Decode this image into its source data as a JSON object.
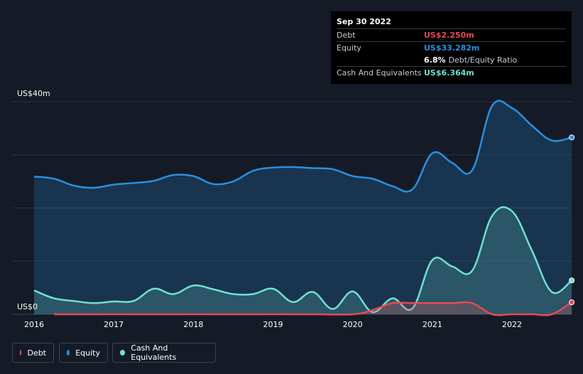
{
  "tooltip": {
    "date": "Sep 30 2022",
    "debt_label": "Debt",
    "debt_value": "US$2.250m",
    "equity_label": "Equity",
    "equity_value": "US$33.282m",
    "ratio_value": "6.8%",
    "ratio_label": "Debt/Equity Ratio",
    "cash_label": "Cash And Equivalents",
    "cash_value": "US$6.364m"
  },
  "legend": {
    "debt": "Debt",
    "equity": "Equity",
    "cash": "Cash And Equivalents"
  },
  "colors": {
    "debt": "#e64a55",
    "equity": "#2b8fe0",
    "cash": "#70e0cf",
    "background": "#151b26"
  },
  "chart_data": {
    "type": "area",
    "ylabel_top": "US$40m",
    "ylabel_bottom": "US$0",
    "ylim": [
      0,
      40
    ],
    "grid": true,
    "legend_position": "bottom-left",
    "x_ticks": [
      "2016",
      "2017",
      "2018",
      "2019",
      "2020",
      "2021",
      "2022"
    ],
    "series": [
      {
        "name": "Equity",
        "points": [
          [
            2016.0,
            25.9
          ],
          [
            2016.25,
            25.5
          ],
          [
            2016.5,
            24.2
          ],
          [
            2016.75,
            23.8
          ],
          [
            2017.0,
            24.4
          ],
          [
            2017.25,
            24.7
          ],
          [
            2017.5,
            25.1
          ],
          [
            2017.75,
            26.2
          ],
          [
            2018.0,
            26.0
          ],
          [
            2018.25,
            24.5
          ],
          [
            2018.5,
            25.0
          ],
          [
            2018.75,
            27.0
          ],
          [
            2019.0,
            27.6
          ],
          [
            2019.25,
            27.7
          ],
          [
            2019.5,
            27.5
          ],
          [
            2019.75,
            27.3
          ],
          [
            2020.0,
            26.0
          ],
          [
            2020.25,
            25.5
          ],
          [
            2020.5,
            24.1
          ],
          [
            2020.75,
            23.5
          ],
          [
            2021.0,
            30.3
          ],
          [
            2021.25,
            28.5
          ],
          [
            2021.5,
            27.1
          ],
          [
            2021.75,
            39.2
          ],
          [
            2022.0,
            38.8
          ],
          [
            2022.25,
            35.5
          ],
          [
            2022.5,
            32.7
          ],
          [
            2022.75,
            33.282
          ]
        ]
      },
      {
        "name": "Cash And Equivalents",
        "points": [
          [
            2016.0,
            4.5
          ],
          [
            2016.25,
            3.0
          ],
          [
            2016.5,
            2.5
          ],
          [
            2016.75,
            2.1
          ],
          [
            2017.0,
            2.4
          ],
          [
            2017.25,
            2.5
          ],
          [
            2017.5,
            4.8
          ],
          [
            2017.75,
            3.8
          ],
          [
            2018.0,
            5.4
          ],
          [
            2018.25,
            4.7
          ],
          [
            2018.5,
            3.8
          ],
          [
            2018.75,
            3.8
          ],
          [
            2019.0,
            4.8
          ],
          [
            2019.25,
            2.3
          ],
          [
            2019.5,
            4.2
          ],
          [
            2019.75,
            1.0
          ],
          [
            2020.0,
            4.3
          ],
          [
            2020.25,
            0.4
          ],
          [
            2020.5,
            3.0
          ],
          [
            2020.75,
            1.1
          ],
          [
            2021.0,
            10.2
          ],
          [
            2021.25,
            9.0
          ],
          [
            2021.5,
            8.2
          ],
          [
            2021.75,
            18.5
          ],
          [
            2022.0,
            19.4
          ],
          [
            2022.25,
            12.0
          ],
          [
            2022.5,
            4.2
          ],
          [
            2022.75,
            6.364
          ]
        ]
      },
      {
        "name": "Debt",
        "points": [
          [
            2016.25,
            0.0
          ],
          [
            2016.5,
            0.0
          ],
          [
            2017.0,
            0.0
          ],
          [
            2017.5,
            0.0
          ],
          [
            2018.0,
            0.0
          ],
          [
            2018.5,
            0.0
          ],
          [
            2019.0,
            0.0
          ],
          [
            2019.5,
            0.0
          ],
          [
            2020.0,
            0.0
          ],
          [
            2020.25,
            0.8
          ],
          [
            2020.5,
            2.1
          ],
          [
            2020.75,
            2.1
          ],
          [
            2021.0,
            2.1
          ],
          [
            2021.25,
            2.1
          ],
          [
            2021.5,
            2.1
          ],
          [
            2021.75,
            0.0
          ],
          [
            2022.0,
            0.0
          ],
          [
            2022.25,
            0.0
          ],
          [
            2022.5,
            0.0
          ],
          [
            2022.75,
            2.25
          ]
        ]
      }
    ]
  }
}
